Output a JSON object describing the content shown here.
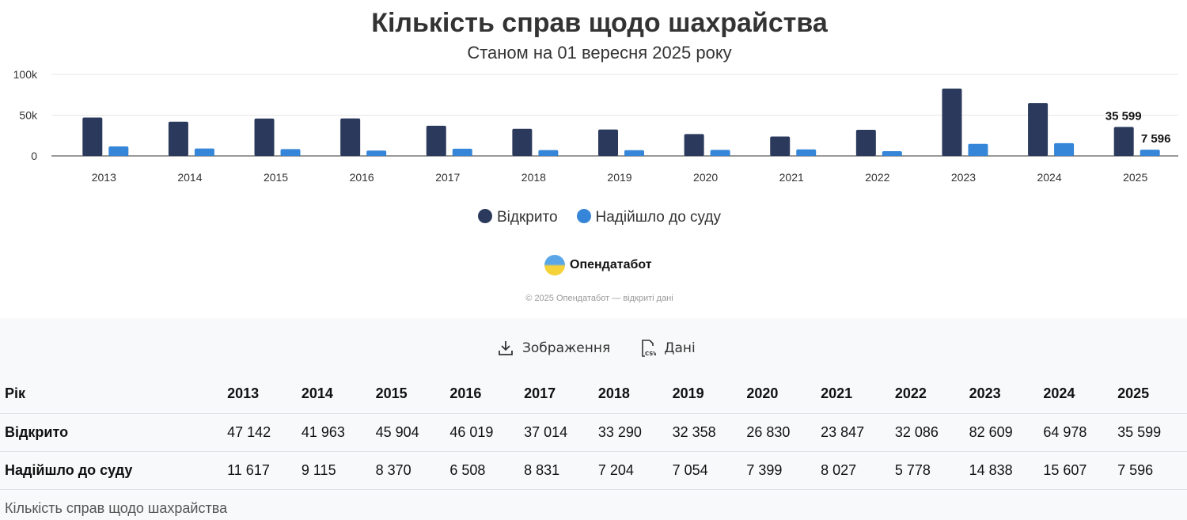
{
  "chart_data": {
    "type": "bar",
    "title": "Кількість справ щодо шахрайства",
    "subtitle": "Станом на 01 вересня 2025 року",
    "categories": [
      "2013",
      "2014",
      "2015",
      "2016",
      "2017",
      "2018",
      "2019",
      "2020",
      "2021",
      "2022",
      "2023",
      "2024",
      "2025"
    ],
    "series": [
      {
        "name": "Відкрито",
        "color": "#2b3a5c",
        "values": [
          47142,
          41963,
          45904,
          46019,
          37014,
          33290,
          32358,
          26830,
          23847,
          32086,
          82609,
          64978,
          35599
        ]
      },
      {
        "name": "Надійшло до суду",
        "color": "#3585d8",
        "values": [
          11617,
          9115,
          8370,
          6508,
          8831,
          7204,
          7054,
          7399,
          8027,
          5778,
          14838,
          15607,
          7596
        ]
      }
    ],
    "yticks": [
      "0",
      "50k",
      "100k"
    ],
    "ylim": [
      0,
      100000
    ],
    "data_labels": {
      "Відкрито": "35 599",
      "Надійшло до суду": "7 596"
    },
    "legend": "bottom-center"
  },
  "brand": {
    "name": "Опендатабот",
    "copyright": "© 2025 Опендатабот — відкриті дані"
  },
  "actions": {
    "image": "Зображення",
    "data": "Дані",
    "csv": "CSV"
  },
  "table": {
    "header": [
      "Рік",
      "2013",
      "2014",
      "2015",
      "2016",
      "2017",
      "2018",
      "2019",
      "2020",
      "2021",
      "2022",
      "2023",
      "2024",
      "2025"
    ],
    "rows": [
      [
        "Відкрито",
        "47 142",
        "41 963",
        "45 904",
        "46 019",
        "37 014",
        "33 290",
        "32 358",
        "26 830",
        "23 847",
        "32 086",
        "82 609",
        "64 978",
        "35 599"
      ],
      [
        "Надійшло до суду",
        "11 617",
        "9 115",
        "8 370",
        "6 508",
        "8 831",
        "7 204",
        "7 054",
        "7 399",
        "8 027",
        "5 778",
        "14 838",
        "15 607",
        "7 596"
      ]
    ],
    "caption": "Кількість справ щодо шахрайства"
  }
}
